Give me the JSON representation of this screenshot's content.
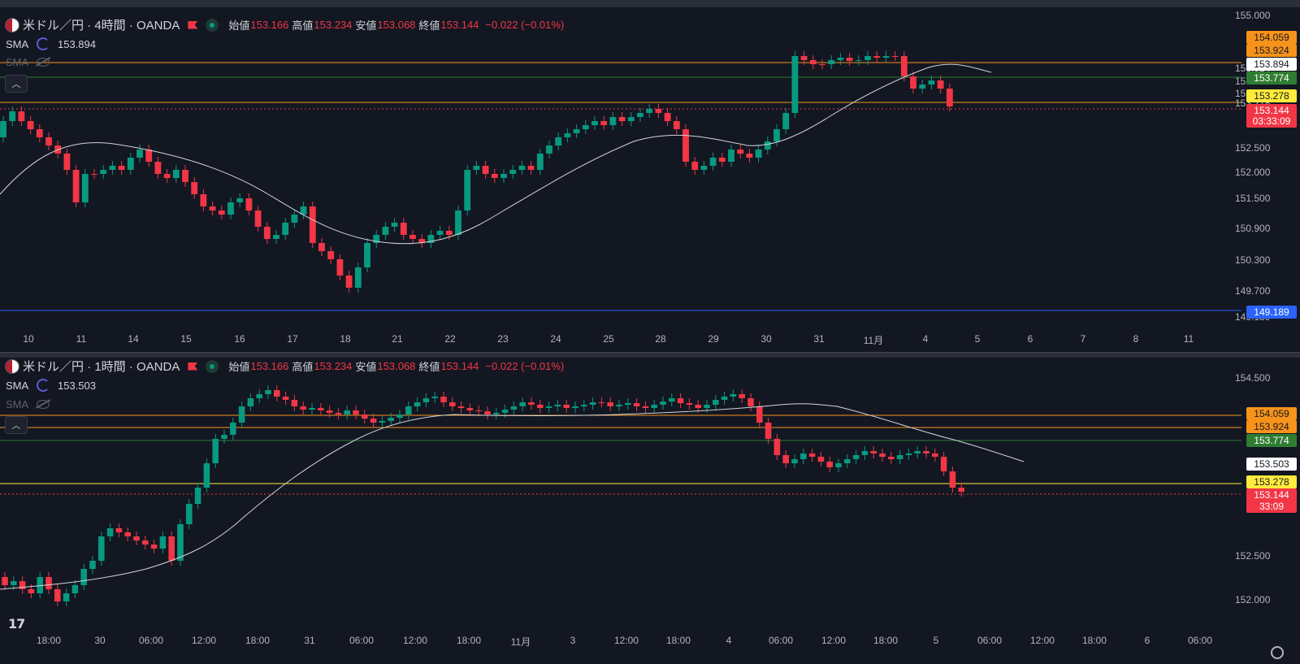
{
  "pane1": {
    "symbol": "米ドル／円 · 4時間 · OANDA",
    "ohlc": [
      {
        "label": "始値",
        "value": "153.166"
      },
      {
        "label": "高値",
        "value": "153.234"
      },
      {
        "label": "安値",
        "value": "153.068"
      },
      {
        "label": "終値",
        "value": "153.144"
      }
    ],
    "change": "−0.022 (−0.01%)",
    "sma1": {
      "name": "SMA",
      "value": "153.894"
    },
    "sma2": {
      "name": "SMA"
    },
    "price_axis": [
      "155.000",
      "153.924",
      "153.774",
      "153.500",
      "153.278",
      "152.500",
      "152.000",
      "151.500",
      "150.900",
      "150.300",
      "149.700",
      "149.189"
    ],
    "tags": [
      {
        "text": "154.059",
        "bg": "#f7931a",
        "fg": "#131722"
      },
      {
        "text": "153.924",
        "bg": "#f7931a",
        "fg": "#131722"
      },
      {
        "text": "153.894",
        "bg": "#ffffff",
        "fg": "#131722"
      },
      {
        "text": "153.774",
        "bg": "#2e7d32",
        "fg": "#ffffff"
      },
      {
        "text": "153.278",
        "bg": "#ffeb3b",
        "fg": "#131722"
      },
      {
        "text": "153.144",
        "bg": "#f23645",
        "fg": "#ffffff"
      },
      {
        "text": "03:33:09",
        "bg": "#f23645",
        "fg": "#ffffff"
      },
      {
        "text": "149.189",
        "bg": "#2962ff",
        "fg": "#ffffff"
      }
    ],
    "time_axis": [
      "10",
      "11",
      "14",
      "15",
      "16",
      "17",
      "18",
      "21",
      "22",
      "23",
      "24",
      "25",
      "28",
      "29",
      "30",
      "31",
      "11月",
      "4",
      "5",
      "6",
      "7",
      "8",
      "11"
    ]
  },
  "pane2": {
    "symbol": "米ドル／円 · 1時間 · OANDA",
    "ohlc": [
      {
        "label": "始値",
        "value": "153.166"
      },
      {
        "label": "高値",
        "value": "153.234"
      },
      {
        "label": "安値",
        "value": "153.068"
      },
      {
        "label": "終値",
        "value": "153.144"
      }
    ],
    "change": "−0.022 (−0.01%)",
    "sma1": {
      "name": "SMA",
      "value": "153.503"
    },
    "sma2": {
      "name": "SMA"
    },
    "price_axis": [
      "154.500",
      "152.500",
      "152.000"
    ],
    "tags": [
      {
        "text": "154.059",
        "bg": "#f7931a",
        "fg": "#131722"
      },
      {
        "text": "153.924",
        "bg": "#f7931a",
        "fg": "#131722"
      },
      {
        "text": "153.774",
        "bg": "#2e7d32",
        "fg": "#ffffff"
      },
      {
        "text": "153.503",
        "bg": "#ffffff",
        "fg": "#131722"
      },
      {
        "text": "153.278",
        "bg": "#ffeb3b",
        "fg": "#131722"
      },
      {
        "text": "153.144",
        "bg": "#f23645",
        "fg": "#ffffff"
      },
      {
        "text": "33:09",
        "bg": "#f23645",
        "fg": "#ffffff"
      }
    ],
    "time_axis": [
      "18:00",
      "30",
      "06:00",
      "12:00",
      "18:00",
      "31",
      "06:00",
      "12:00",
      "18:00",
      "11月",
      "3",
      "12:00",
      "18:00",
      "4",
      "06:00",
      "12:00",
      "18:00",
      "5",
      "06:00",
      "12:00",
      "18:00",
      "6",
      "06:00"
    ]
  },
  "colors": {
    "up": "#089981",
    "down": "#f23645",
    "background": "#131722",
    "sma_line": "#d1d4dc"
  },
  "logo": "17"
}
